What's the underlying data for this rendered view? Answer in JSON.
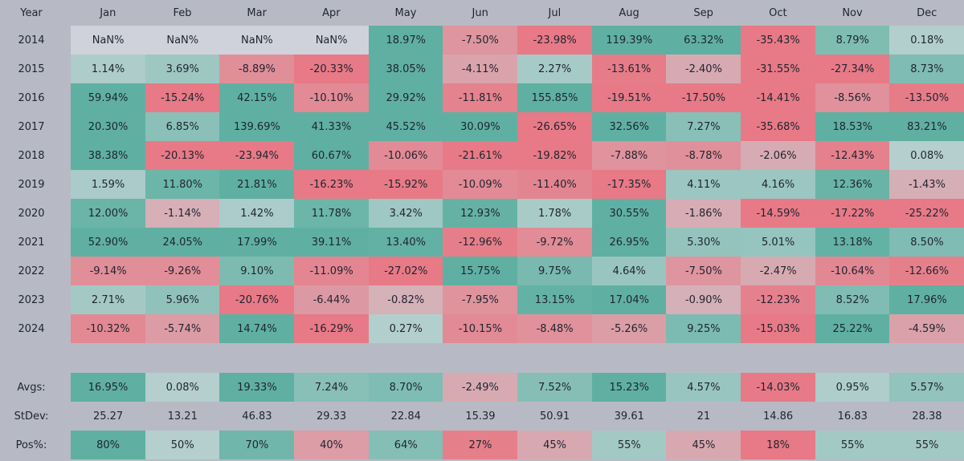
{
  "chart_data": {
    "type": "heatmap",
    "corner_label": "Year",
    "columns": [
      "Jan",
      "Feb",
      "Mar",
      "Apr",
      "May",
      "Jun",
      "Jul",
      "Aug",
      "Sep",
      "Oct",
      "Nov",
      "Dec"
    ],
    "rows": [
      {
        "label": "2014",
        "cells": [
          "NaN%",
          "NaN%",
          "NaN%",
          "NaN%",
          "18.97%",
          "-7.50%",
          "-23.98%",
          "119.39%",
          "63.32%",
          "-35.43%",
          "8.79%",
          "0.18%"
        ]
      },
      {
        "label": "2015",
        "cells": [
          "1.14%",
          "3.69%",
          "-8.89%",
          "-20.33%",
          "38.05%",
          "-4.11%",
          "2.27%",
          "-13.61%",
          "-2.40%",
          "-31.55%",
          "-27.34%",
          "8.73%"
        ]
      },
      {
        "label": "2016",
        "cells": [
          "59.94%",
          "-15.24%",
          "42.15%",
          "-10.10%",
          "29.92%",
          "-11.81%",
          "155.85%",
          "-19.51%",
          "-17.50%",
          "-14.41%",
          "-8.56%",
          "-13.50%"
        ]
      },
      {
        "label": "2017",
        "cells": [
          "20.30%",
          "6.85%",
          "139.69%",
          "41.33%",
          "45.52%",
          "30.09%",
          "-26.65%",
          "32.56%",
          "7.27%",
          "-35.68%",
          "18.53%",
          "83.21%"
        ]
      },
      {
        "label": "2018",
        "cells": [
          "38.38%",
          "-20.13%",
          "-23.94%",
          "60.67%",
          "-10.06%",
          "-21.61%",
          "-19.82%",
          "-7.88%",
          "-8.78%",
          "-2.06%",
          "-12.43%",
          "0.08%"
        ]
      },
      {
        "label": "2019",
        "cells": [
          "1.59%",
          "11.80%",
          "21.81%",
          "-16.23%",
          "-15.92%",
          "-10.09%",
          "-11.40%",
          "-17.35%",
          "4.11%",
          "4.16%",
          "12.36%",
          "-1.43%"
        ]
      },
      {
        "label": "2020",
        "cells": [
          "12.00%",
          "-1.14%",
          "1.42%",
          "11.78%",
          "3.42%",
          "12.93%",
          "1.78%",
          "30.55%",
          "-1.86%",
          "-14.59%",
          "-17.22%",
          "-25.22%"
        ]
      },
      {
        "label": "2021",
        "cells": [
          "52.90%",
          "24.05%",
          "17.99%",
          "39.11%",
          "13.40%",
          "-12.96%",
          "-9.72%",
          "26.95%",
          "5.30%",
          "5.01%",
          "13.18%",
          "8.50%"
        ]
      },
      {
        "label": "2022",
        "cells": [
          "-9.14%",
          "-9.26%",
          "9.10%",
          "-11.09%",
          "-27.02%",
          "15.75%",
          "9.75%",
          "4.64%",
          "-7.50%",
          "-2.47%",
          "-10.64%",
          "-12.66%"
        ]
      },
      {
        "label": "2023",
        "cells": [
          "2.71%",
          "5.96%",
          "-20.76%",
          "-6.44%",
          "-0.82%",
          "-7.95%",
          "13.15%",
          "17.04%",
          "-0.90%",
          "-12.23%",
          "8.52%",
          "17.96%"
        ]
      },
      {
        "label": "2024",
        "cells": [
          "-10.32%",
          "-5.74%",
          "14.74%",
          "-16.29%",
          "0.27%",
          "-10.15%",
          "-8.48%",
          "-5.26%",
          "9.25%",
          "-15.03%",
          "25.22%",
          "-4.59%"
        ]
      }
    ],
    "summary": [
      {
        "label": "Avgs:",
        "colored": true,
        "cells": [
          "16.95%",
          "0.08%",
          "19.33%",
          "7.24%",
          "8.70%",
          "-2.49%",
          "7.52%",
          "15.23%",
          "4.57%",
          "-14.03%",
          "0.95%",
          "5.57%"
        ]
      },
      {
        "label": "StDev:",
        "colored": false,
        "cells": [
          "25.27",
          "13.21",
          "46.83",
          "29.33",
          "22.84",
          "15.39",
          "50.91",
          "39.61",
          "21",
          "14.86",
          "16.83",
          "28.38"
        ]
      },
      {
        "label": "Pos%:",
        "colored": true,
        "cells": [
          "80%",
          "50%",
          "70%",
          "40%",
          "64%",
          "27%",
          "45%",
          "55%",
          "45%",
          "18%",
          "55%",
          "55%"
        ]
      }
    ],
    "colors": {
      "background": "#b7bac4",
      "neutral": "#cfd2da",
      "positive_light": "#b4cfce",
      "positive_strong": "#5fb0a2",
      "negative_light": "#d4b4bb",
      "negative_strong": "#e77a86"
    }
  }
}
